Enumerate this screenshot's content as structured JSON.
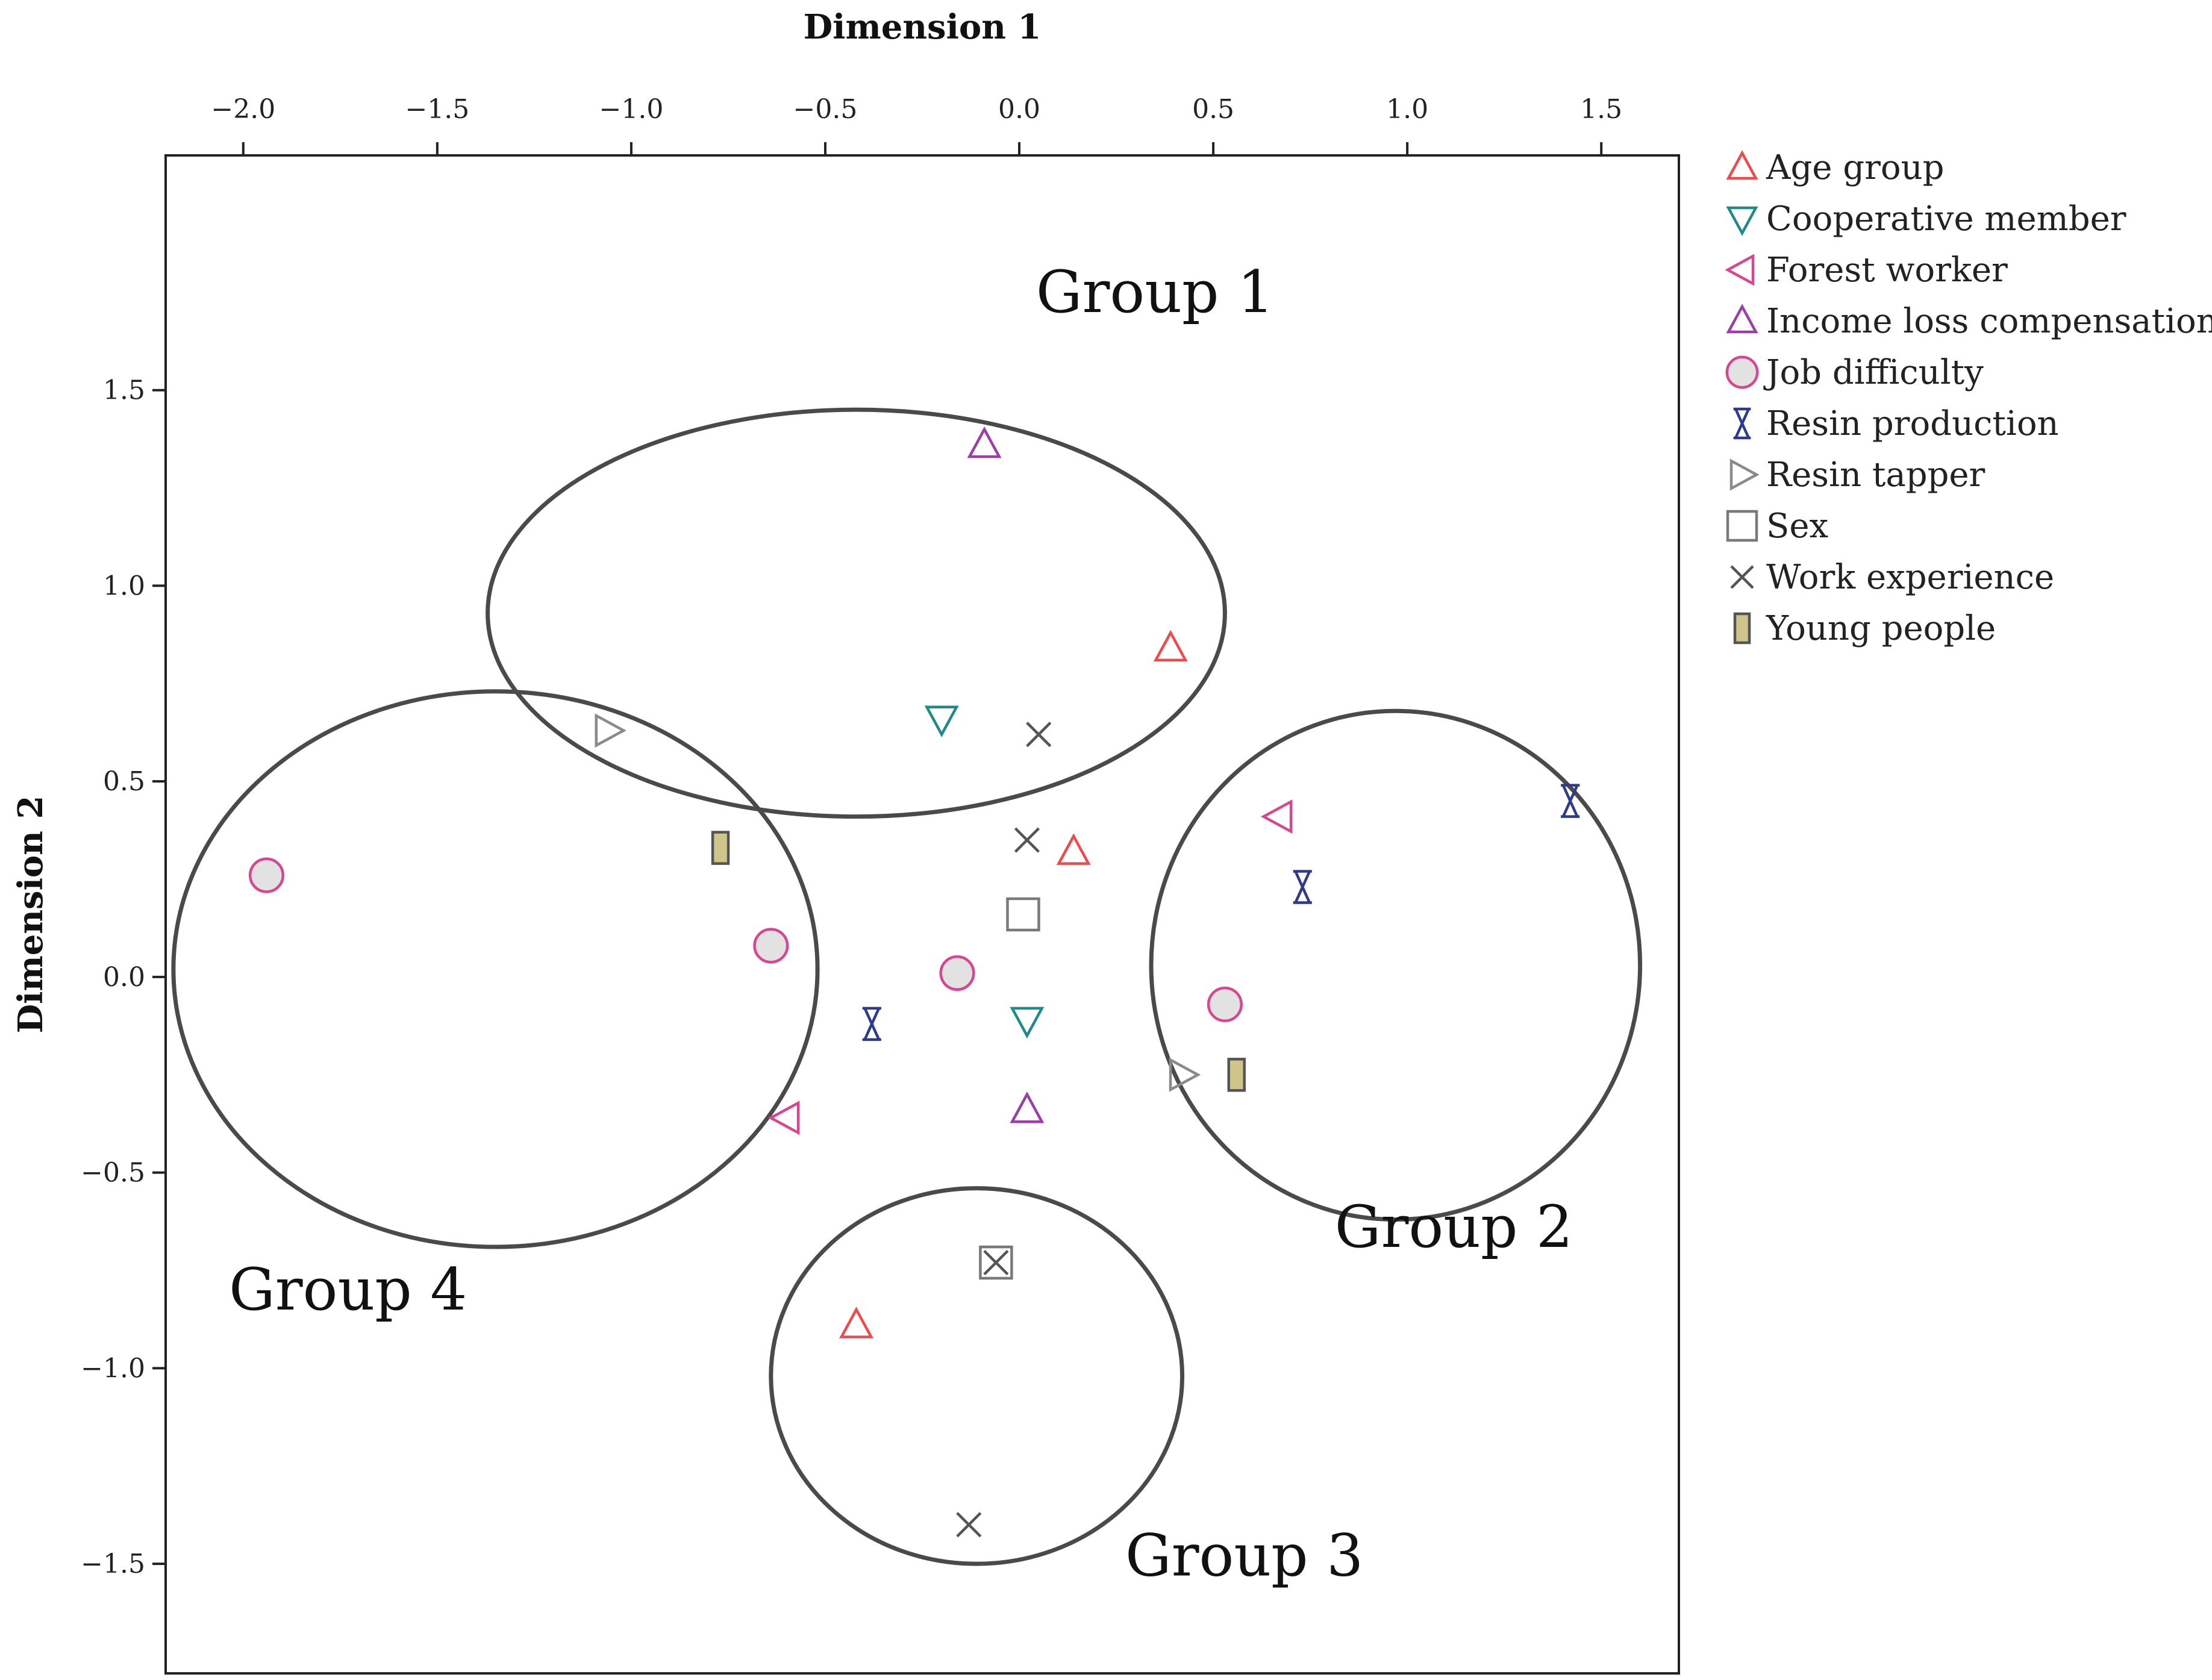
{
  "chart_data": {
    "type": "scatter",
    "title": "",
    "xlabel": "Dimension 1",
    "ylabel": "Dimension 2",
    "xlim": [
      -2.2,
      1.7
    ],
    "ylim": [
      -1.78,
      2.1
    ],
    "x_ticks": [
      -2.0,
      -1.5,
      -1.0,
      -0.5,
      0.0,
      0.5,
      1.0,
      1.5
    ],
    "x_tick_labels": [
      "−2.0",
      "−1.5",
      "−1.0",
      "−0.5",
      "0.0",
      "0.5",
      "1.0",
      "1.5"
    ],
    "y_ticks": [
      1.5,
      1.0,
      0.5,
      0.0,
      -0.5,
      -1.0,
      -1.5
    ],
    "y_tick_labels": [
      "1.5",
      "1.0",
      "0.5",
      "0.0",
      "−0.5",
      "−1.0",
      "−1.5"
    ],
    "legend_position": "right",
    "series": [
      {
        "name": "Age group",
        "marker": "triangle-up",
        "color": "#f04a4a",
        "fill": "none",
        "points": [
          [
            0.39,
            0.84
          ],
          [
            0.14,
            0.32
          ],
          [
            -0.42,
            -0.89
          ]
        ]
      },
      {
        "name": "Cooperative member",
        "marker": "triangle-down",
        "color": "#1f8a8a",
        "fill": "none",
        "points": [
          [
            -0.2,
            0.66
          ],
          [
            0.02,
            -0.11
          ]
        ]
      },
      {
        "name": "Forest worker",
        "marker": "triangle-left",
        "color": "#d9468f",
        "fill": "none",
        "points": [
          [
            0.67,
            0.41
          ],
          [
            -0.6,
            -0.36
          ]
        ]
      },
      {
        "name": "Income loss compensation",
        "marker": "triangle-up",
        "color": "#9b3fa6",
        "fill": "none",
        "points": [
          [
            -0.09,
            1.36
          ],
          [
            0.02,
            -0.34
          ]
        ]
      },
      {
        "name": "Job difficulty",
        "marker": "circle",
        "color": "#d9468f",
        "fill": "#e2e2e2",
        "points": [
          [
            -1.94,
            0.26
          ],
          [
            -0.64,
            0.08
          ],
          [
            -0.16,
            0.01
          ],
          [
            0.53,
            -0.07
          ]
        ]
      },
      {
        "name": "Resin production",
        "marker": "hourglass",
        "color": "#2e3a8c",
        "fill": "none",
        "points": [
          [
            1.42,
            0.45
          ],
          [
            0.73,
            0.23
          ],
          [
            -0.38,
            -0.12
          ]
        ]
      },
      {
        "name": "Resin tapper",
        "marker": "triangle-right",
        "color": "#8a8a8a",
        "fill": "none",
        "points": [
          [
            -1.06,
            0.63
          ],
          [
            0.42,
            -0.25
          ]
        ]
      },
      {
        "name": "Sex",
        "marker": "square",
        "color": "#7a7a7a",
        "fill": "none",
        "points": [
          [
            0.01,
            0.16
          ],
          [
            -0.06,
            -0.73
          ]
        ]
      },
      {
        "name": "Work experience",
        "marker": "x",
        "color": "#555555",
        "fill": "none",
        "points": [
          [
            0.05,
            0.62
          ],
          [
            0.02,
            0.35
          ],
          [
            -0.06,
            -0.73
          ],
          [
            -0.13,
            -1.4
          ]
        ]
      },
      {
        "name": "Young people",
        "marker": "bar",
        "color": "#555555",
        "fill": "#cfc58a",
        "points": [
          [
            -0.77,
            0.33
          ],
          [
            0.56,
            -0.25
          ]
        ]
      }
    ],
    "groups": [
      {
        "label": "Group 1",
        "cx": -0.42,
        "cy": 0.93,
        "rx": 0.95,
        "ry": 0.52,
        "label_x": 0.35,
        "label_y": 1.7
      },
      {
        "label": "Group 2",
        "cx": 0.97,
        "cy": 0.03,
        "rx": 0.63,
        "ry": 0.65,
        "label_x": 1.12,
        "label_y": -0.69
      },
      {
        "label": "Group 3",
        "cx": -0.11,
        "cy": -1.02,
        "rx": 0.53,
        "ry": 0.48,
        "label_x": 0.58,
        "label_y": -1.53
      },
      {
        "label": "Group 4",
        "cx": -1.35,
        "cy": 0.02,
        "rx": 0.83,
        "ry": 0.71,
        "label_x": -1.73,
        "label_y": -0.85
      }
    ]
  }
}
